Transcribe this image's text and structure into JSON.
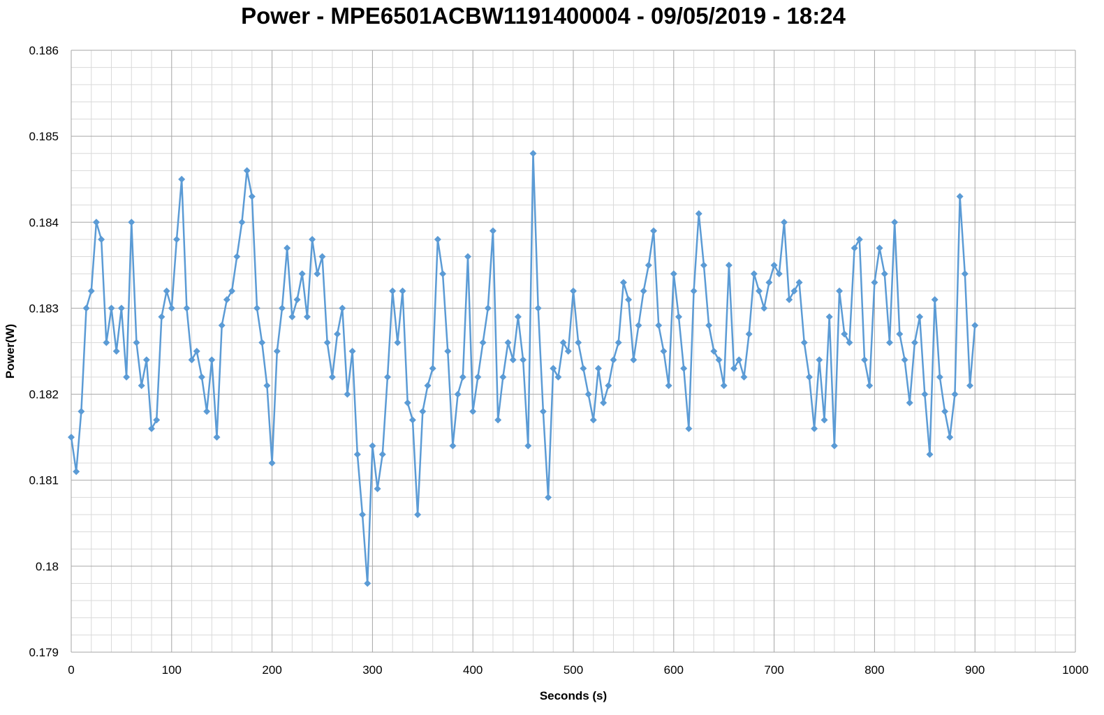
{
  "chart_data": {
    "type": "line",
    "title": "Power - MPE6501ACBW1191400004 - 09/05/2019 - 18:24",
    "x_label": "Seconds (s)",
    "y_label": "Power(W)",
    "color": "#5b9bd5",
    "grid": true,
    "minor_grid_divisions": 5,
    "xlim": [
      0,
      1000
    ],
    "xticks": [
      0,
      100,
      200,
      300,
      400,
      500,
      600,
      700,
      800,
      900,
      1000
    ],
    "ylim": [
      0.179,
      0.186
    ],
    "yticks": [
      0.179,
      0.18,
      0.181,
      0.182,
      0.183,
      0.184,
      0.185,
      0.186
    ],
    "x": [
      0,
      5,
      10,
      15,
      20,
      25,
      30,
      35,
      40,
      45,
      50,
      55,
      60,
      65,
      70,
      75,
      80,
      85,
      90,
      95,
      100,
      105,
      110,
      115,
      120,
      125,
      130,
      135,
      140,
      145,
      150,
      155,
      160,
      165,
      170,
      175,
      180,
      185,
      190,
      195,
      200,
      205,
      210,
      215,
      220,
      225,
      230,
      235,
      240,
      245,
      250,
      255,
      260,
      265,
      270,
      275,
      280,
      285,
      290,
      295,
      300,
      305,
      310,
      315,
      320,
      325,
      330,
      335,
      340,
      345,
      350,
      355,
      360,
      365,
      370,
      375,
      380,
      385,
      390,
      395,
      400,
      405,
      410,
      415,
      420,
      425,
      430,
      435,
      440,
      445,
      450,
      455,
      460,
      465,
      470,
      475,
      480,
      485,
      490,
      495,
      500,
      505,
      510,
      515,
      520,
      525,
      530,
      535,
      540,
      545,
      550,
      555,
      560,
      565,
      570,
      575,
      580,
      585,
      590,
      595,
      600,
      605,
      610,
      615,
      620,
      625,
      630,
      635,
      640,
      645,
      650,
      655,
      660,
      665,
      670,
      675,
      680,
      685,
      690,
      695,
      700,
      705,
      710,
      715,
      720,
      725,
      730,
      735,
      740,
      745,
      750,
      755,
      760,
      765,
      770,
      775,
      780,
      785,
      790,
      795,
      800,
      805,
      810,
      815,
      820,
      825,
      830,
      835,
      840,
      845,
      850,
      855,
      860,
      865,
      870,
      875,
      880,
      885,
      890,
      895,
      900
    ],
    "values": [
      0.1815,
      0.1811,
      0.1818,
      0.183,
      0.1832,
      0.184,
      0.1838,
      0.1826,
      0.183,
      0.1825,
      0.183,
      0.1822,
      0.184,
      0.1826,
      0.1821,
      0.1824,
      0.1816,
      0.1817,
      0.1829,
      0.1832,
      0.183,
      0.1838,
      0.1845,
      0.183,
      0.1824,
      0.1825,
      0.1822,
      0.1818,
      0.1824,
      0.1815,
      0.1828,
      0.1831,
      0.1832,
      0.1836,
      0.184,
      0.1846,
      0.1843,
      0.183,
      0.1826,
      0.1821,
      0.1812,
      0.1825,
      0.183,
      0.1837,
      0.1829,
      0.1831,
      0.1834,
      0.1829,
      0.1838,
      0.1834,
      0.1836,
      0.1826,
      0.1822,
      0.1827,
      0.183,
      0.182,
      0.1825,
      0.1813,
      0.1806,
      0.1798,
      0.1814,
      0.1809,
      0.1813,
      0.1822,
      0.1832,
      0.1826,
      0.1832,
      0.1819,
      0.1817,
      0.1806,
      0.1818,
      0.1821,
      0.1823,
      0.1838,
      0.1834,
      0.1825,
      0.1814,
      0.182,
      0.1822,
      0.1836,
      0.1818,
      0.1822,
      0.1826,
      0.183,
      0.1839,
      0.1817,
      0.1822,
      0.1826,
      0.1824,
      0.1829,
      0.1824,
      0.1814,
      0.1848,
      0.183,
      0.1818,
      0.1808,
      0.1823,
      0.1822,
      0.1826,
      0.1825,
      0.1832,
      0.1826,
      0.1823,
      0.182,
      0.1817,
      0.1823,
      0.1819,
      0.1821,
      0.1824,
      0.1826,
      0.1833,
      0.1831,
      0.1824,
      0.1828,
      0.1832,
      0.1835,
      0.1839,
      0.1828,
      0.1825,
      0.1821,
      0.1834,
      0.1829,
      0.1823,
      0.1816,
      0.1832,
      0.1841,
      0.1835,
      0.1828,
      0.1825,
      0.1824,
      0.1821,
      0.1835,
      0.1823,
      0.1824,
      0.1822,
      0.1827,
      0.1834,
      0.1832,
      0.183,
      0.1833,
      0.1835,
      0.1834,
      0.184,
      0.1831,
      0.1832,
      0.1833,
      0.1826,
      0.1822,
      0.1816,
      0.1824,
      0.1817,
      0.1829,
      0.1814,
      0.1832,
      0.1827,
      0.1826,
      0.1837,
      0.1838,
      0.1824,
      0.1821,
      0.1833,
      0.1837,
      0.1834,
      0.1826,
      0.184,
      0.1827,
      0.1824,
      0.1819,
      0.1826,
      0.1829,
      0.182,
      0.1813,
      0.1831,
      0.1822,
      0.1818,
      0.1815,
      0.182,
      0.1843,
      0.1834,
      0.1821,
      0.1828
    ]
  }
}
